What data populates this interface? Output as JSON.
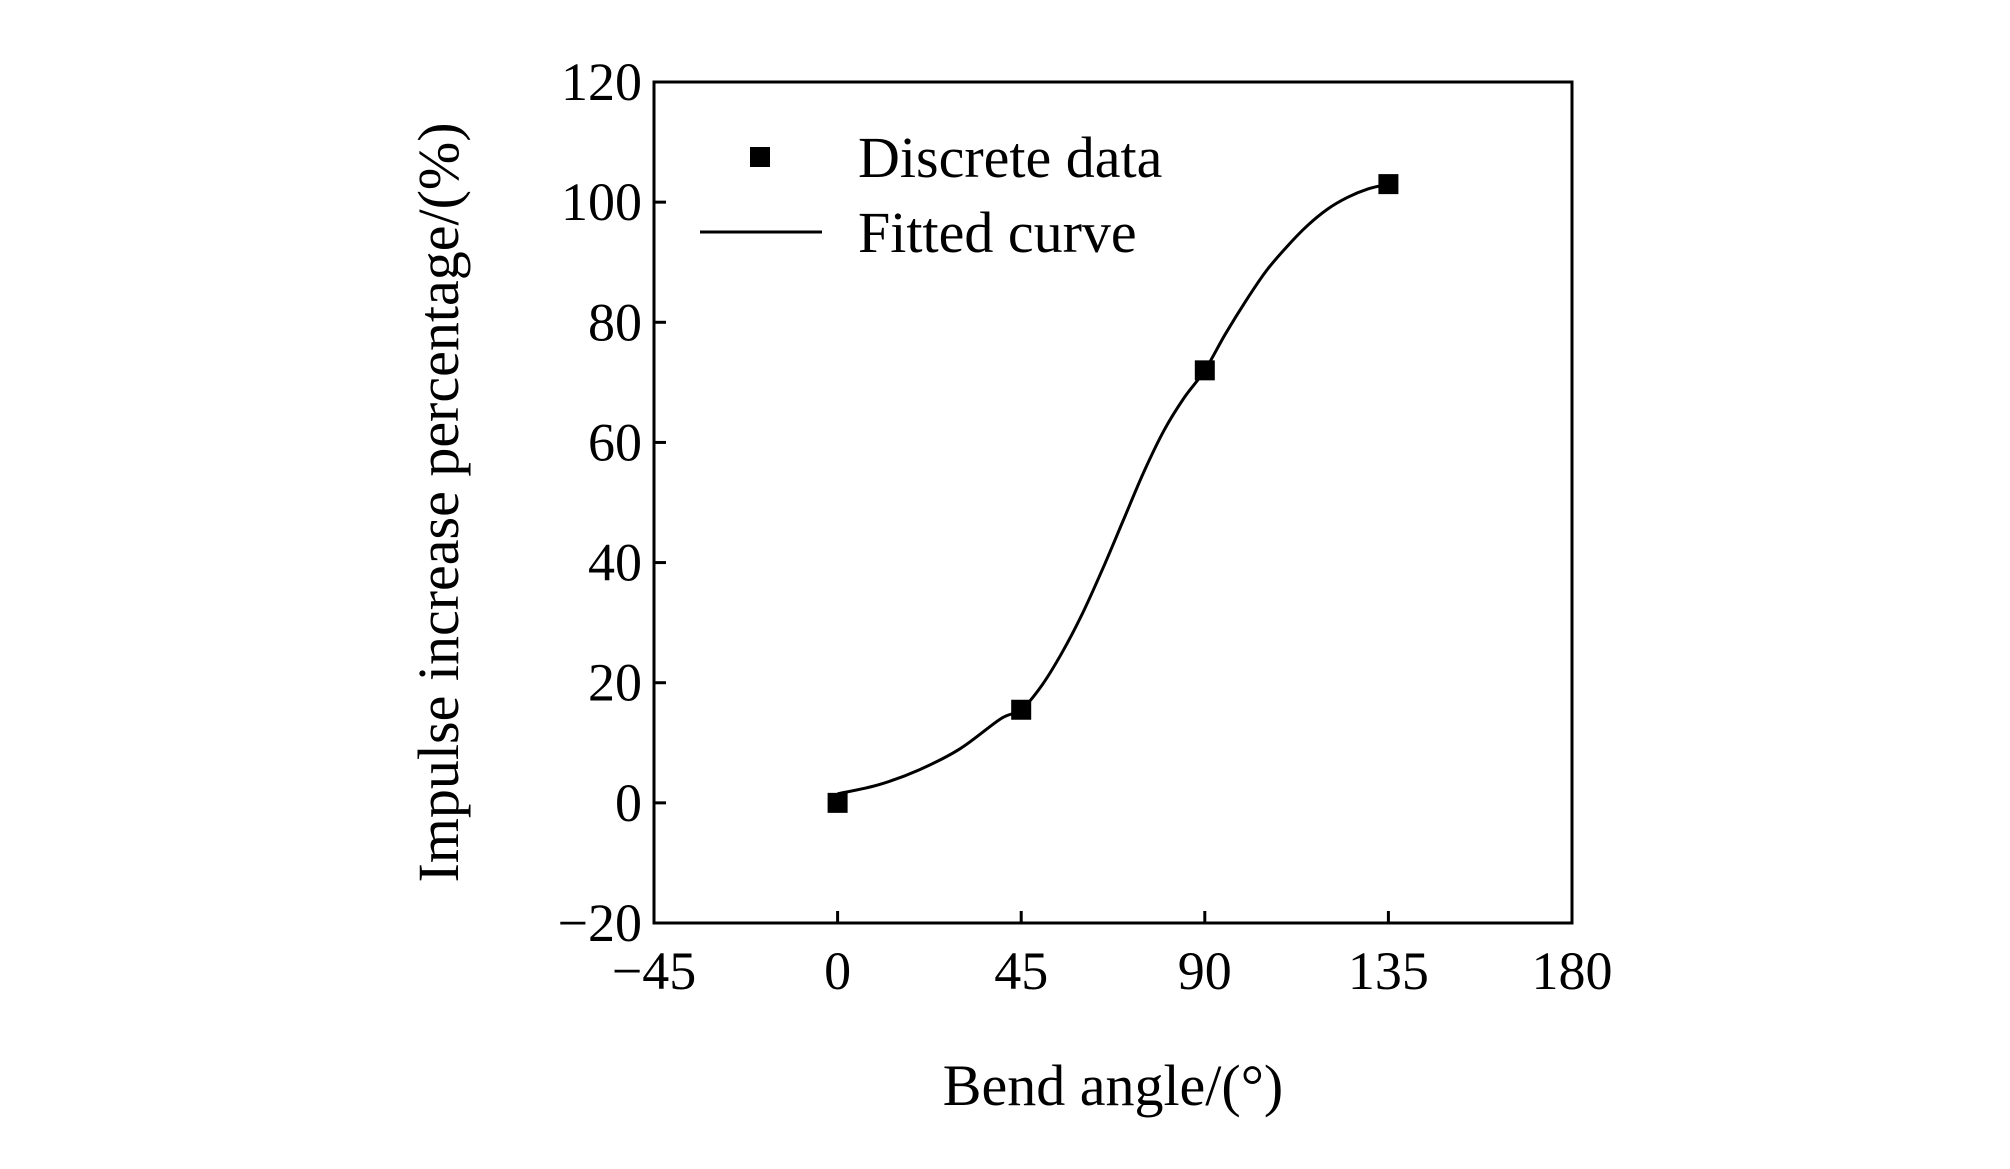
{
  "chart_data": {
    "type": "scatter",
    "xlabel": "Bend angle/(°)",
    "ylabel": "Impulse increase percentage/(%)",
    "xlim": [
      -45,
      180
    ],
    "ylim": [
      -20,
      120
    ],
    "xticks": [
      -45,
      0,
      45,
      90,
      135,
      180
    ],
    "yticks": [
      -20,
      0,
      20,
      40,
      60,
      80,
      100,
      120
    ],
    "xtick_labels": [
      "−45",
      "0",
      "45",
      "90",
      "135",
      "180"
    ],
    "ytick_labels": [
      "−20",
      "0",
      "20",
      "40",
      "60",
      "80",
      "100",
      "120"
    ],
    "grid": false,
    "legend": {
      "placement": "top-left",
      "entries": [
        "Discrete data",
        "Fitted curve"
      ]
    },
    "series": [
      {
        "name": "Discrete data",
        "kind": "scatter",
        "marker": "square",
        "x": [
          0,
          45,
          90,
          135
        ],
        "y": [
          0,
          15.5,
          72,
          103
        ]
      },
      {
        "name": "Fitted curve",
        "kind": "line",
        "x": [
          0,
          10,
          20,
          30,
          40,
          45,
          50,
          55,
          60,
          65,
          70,
          75,
          80,
          85,
          90,
          95,
          100,
          105,
          110,
          115,
          120,
          125,
          130,
          135
        ],
        "y": [
          1.5,
          3,
          5.5,
          9,
          14,
          15.5,
          19.5,
          25,
          31.5,
          39,
          47,
          55,
          62,
          67.5,
          72,
          78,
          83.5,
          88.5,
          92.5,
          96,
          98.8,
          100.8,
          102.2,
          103
        ]
      }
    ],
    "colors": {
      "ink": "#000000",
      "background": "#ffffff"
    }
  }
}
